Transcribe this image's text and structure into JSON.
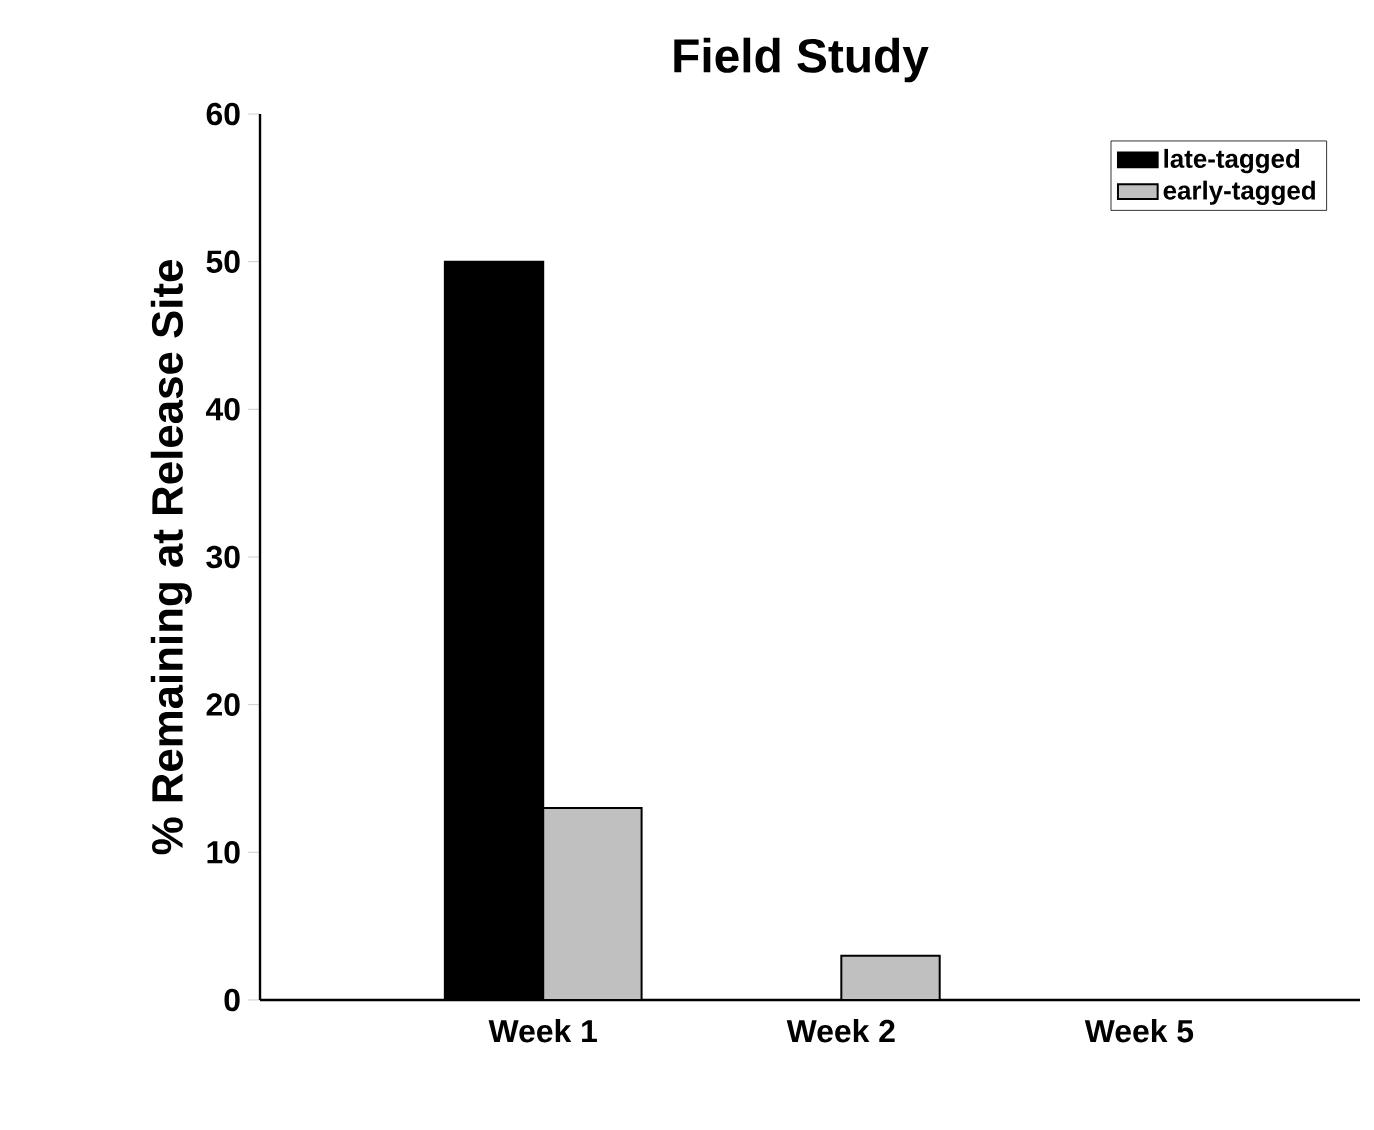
{
  "chart_data": {
    "type": "bar",
    "title": "Field Study",
    "ylabel": "% Remaining at  Release Site",
    "categories": [
      "Week 1",
      "Week 2",
      "Week 5"
    ],
    "series": [
      {
        "name": "late-tagged",
        "color": "#000000",
        "values": [
          50,
          0,
          0
        ]
      },
      {
        "name": "early-tagged",
        "color": "#c0c0c0",
        "values": [
          13,
          3,
          0
        ]
      }
    ],
    "ylim": [
      0,
      60
    ],
    "yticks": [
      0,
      10,
      20,
      30,
      40,
      50,
      60
    ],
    "grid": false,
    "legend": "top right"
  }
}
